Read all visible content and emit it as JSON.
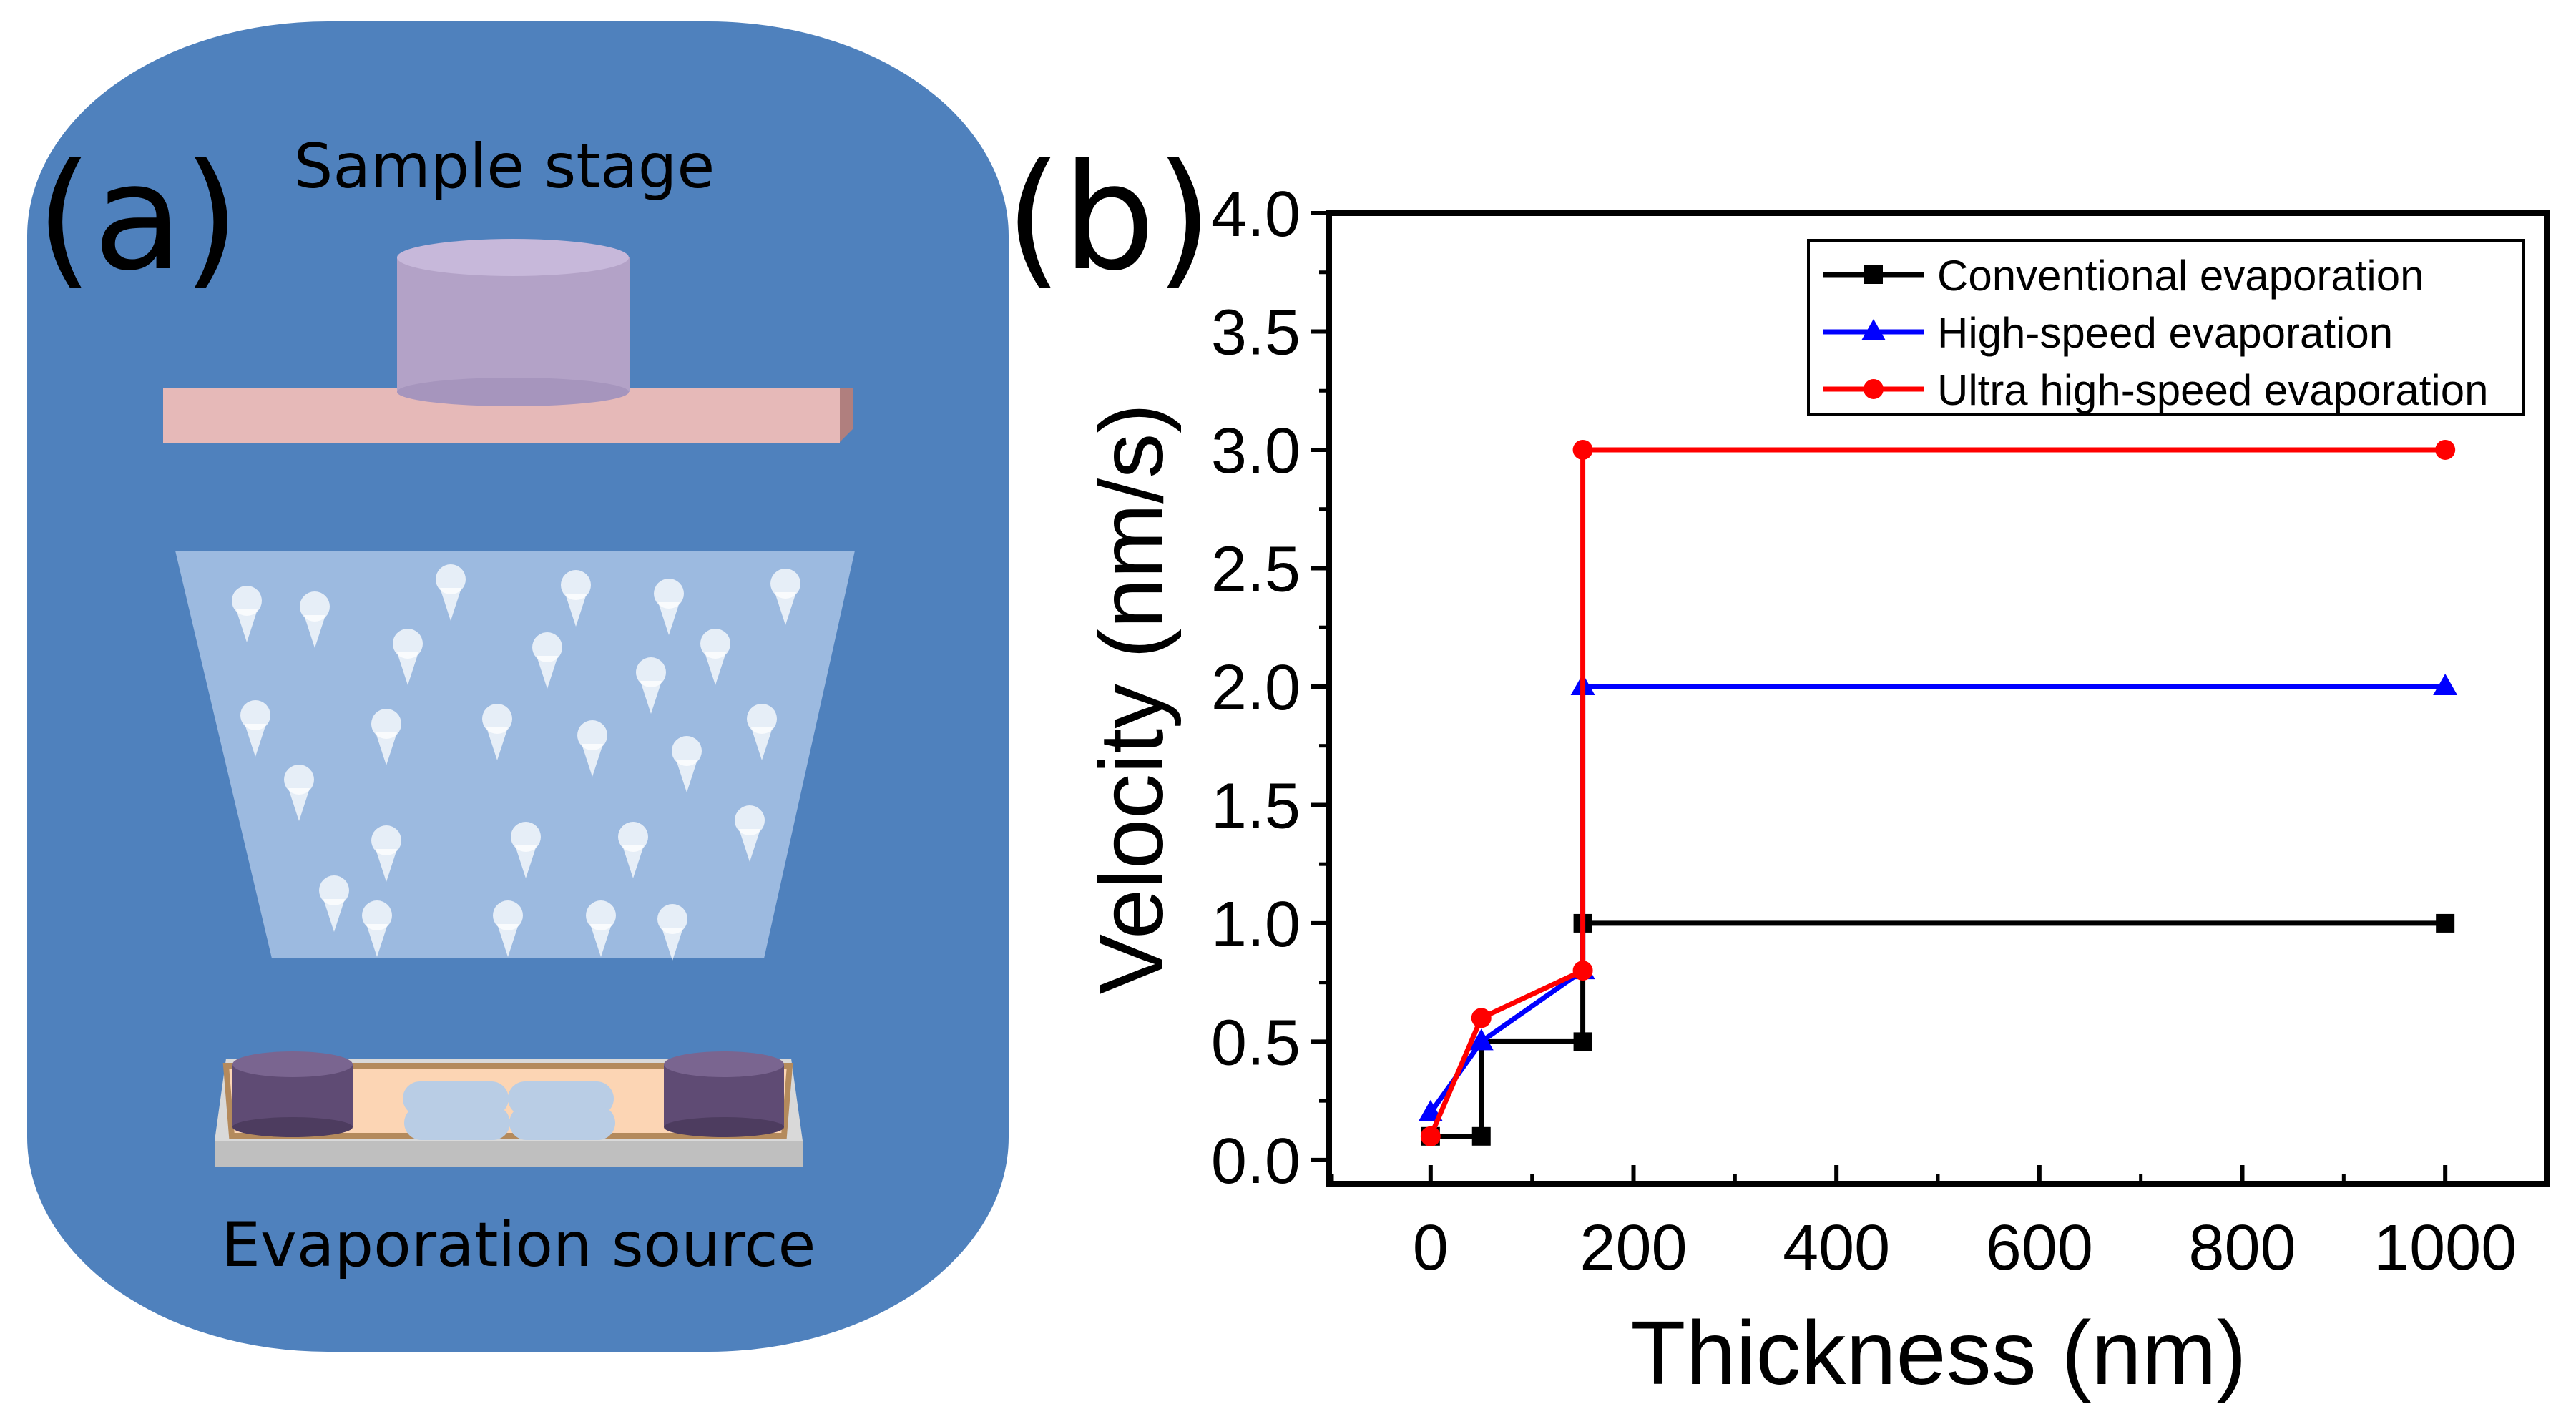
{
  "panel_a": {
    "label": "(a)",
    "top_caption": "Sample stage",
    "bottom_caption": "Evaporation source",
    "colors": {
      "chamber": "#4f81bd",
      "stage": "#e6b9b8",
      "sample": "#b3a2c7",
      "plume": "#a9c4e6",
      "crucible": "#5f4b74",
      "source_tray": "#fcd5b4"
    }
  },
  "panel_b": {
    "label": "(b)"
  },
  "chart_data": {
    "type": "line",
    "xlabel": "Thickness (nm)",
    "ylabel": "Velocity (nm/s)",
    "xlim": [
      -100,
      1100
    ],
    "ylim": [
      -0.1,
      4.0
    ],
    "xticks": [
      0,
      200,
      400,
      600,
      800,
      1000
    ],
    "yticks": [
      0.0,
      0.5,
      1.0,
      1.5,
      2.0,
      2.5,
      3.0,
      3.5,
      4.0
    ],
    "xtick_labels": [
      "0",
      "200",
      "400",
      "600",
      "800",
      "1000"
    ],
    "ytick_labels": [
      "0.0",
      "0.5",
      "1.0",
      "1.5",
      "2.0",
      "2.5",
      "3.0",
      "3.5",
      "4.0"
    ],
    "legend_position": "top-right",
    "series": [
      {
        "name": "Conventional evaporation",
        "color": "#000000",
        "marker": "square",
        "points": [
          [
            0,
            0.1
          ],
          [
            50,
            0.1
          ],
          [
            50,
            0.5
          ],
          [
            150,
            0.5
          ],
          [
            150,
            1.0
          ],
          [
            1000,
            1.0
          ]
        ],
        "markers": [
          [
            0,
            0.1
          ],
          [
            50,
            0.1
          ],
          [
            150,
            0.5
          ],
          [
            150,
            1.0
          ],
          [
            1000,
            1.0
          ]
        ]
      },
      {
        "name": "High-speed evaporation",
        "color": "#0000ff",
        "marker": "triangle",
        "points": [
          [
            0,
            0.2
          ],
          [
            50,
            0.5
          ],
          [
            150,
            0.8
          ],
          [
            150,
            2.0
          ],
          [
            1000,
            2.0
          ]
        ],
        "markers": [
          [
            0,
            0.2
          ],
          [
            50,
            0.5
          ],
          [
            150,
            0.8
          ],
          [
            150,
            2.0
          ],
          [
            1000,
            2.0
          ]
        ]
      },
      {
        "name": "Ultra high-speed evaporation",
        "color": "#ff0000",
        "marker": "circle",
        "points": [
          [
            0,
            0.1
          ],
          [
            50,
            0.6
          ],
          [
            150,
            0.8
          ],
          [
            150,
            3.0
          ],
          [
            1000,
            3.0
          ]
        ],
        "markers": [
          [
            0,
            0.1
          ],
          [
            50,
            0.6
          ],
          [
            150,
            0.8
          ],
          [
            150,
            3.0
          ],
          [
            1000,
            3.0
          ]
        ]
      }
    ]
  }
}
